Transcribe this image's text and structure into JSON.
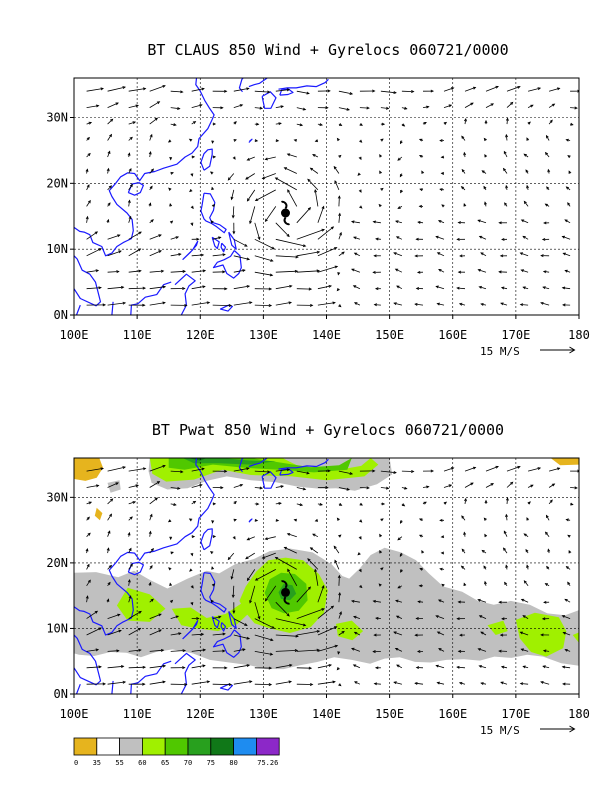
{
  "chart_data": [
    {
      "type": "vector-map",
      "title": "BT CLAUS 850 Wind + Gyrelocs 060721/0000",
      "xlim": [
        100,
        180
      ],
      "ylim": [
        0,
        36
      ],
      "x_ticks": [
        100,
        110,
        120,
        130,
        140,
        150,
        160,
        170,
        180
      ],
      "x_tick_labels": [
        "100E",
        "110E",
        "120E",
        "130E",
        "140E",
        "150E",
        "160E",
        "170E",
        "180"
      ],
      "y_ticks": [
        0,
        10,
        20,
        30
      ],
      "y_tick_labels": [
        "0N",
        "10N",
        "20N",
        "30N"
      ],
      "grid": true,
      "vector_reference": {
        "label": "15 M/S",
        "speed": 15
      },
      "gyre_location": {
        "lon": 133.5,
        "lat": 15.5,
        "icon": "cyclone-icon"
      },
      "coastline_color": "#1a1aff"
    },
    {
      "type": "vector-map-filled-contour",
      "title": "BT Pwat 850 Wind + Gyrelocs 060721/0000",
      "xlim": [
        100,
        180
      ],
      "ylim": [
        0,
        36
      ],
      "x_ticks": [
        100,
        110,
        120,
        130,
        140,
        150,
        160,
        170,
        180
      ],
      "x_tick_labels": [
        "100E",
        "110E",
        "120E",
        "130E",
        "140E",
        "150E",
        "160E",
        "170E",
        "180"
      ],
      "y_ticks": [
        0,
        10,
        20,
        30
      ],
      "y_tick_labels": [
        "0N",
        "10N",
        "20N",
        "30N"
      ],
      "grid": true,
      "vector_reference": {
        "label": "15 M/S",
        "speed": 15
      },
      "gyre_location": {
        "lon": 133.5,
        "lat": 15.5,
        "icon": "cyclone-icon"
      },
      "coastline_color": "#1a1aff",
      "colorbar": {
        "bins": [
          {
            "label": "0",
            "color": "#e6b41e"
          },
          {
            "label": "35",
            "color": "#ffffff"
          },
          {
            "label": "55",
            "color": "#c0c0c0"
          },
          {
            "label": "60",
            "color": "#a0f000"
          },
          {
            "label": "65",
            "color": "#50c800"
          },
          {
            "label": "70",
            "color": "#28a01e"
          },
          {
            "label": "75",
            "color": "#107818"
          },
          {
            "label": "80",
            "color": "#1e8cf0"
          },
          {
            "label": "75.26",
            "color": "#8c28c8"
          }
        ],
        "end_label": ""
      }
    }
  ]
}
